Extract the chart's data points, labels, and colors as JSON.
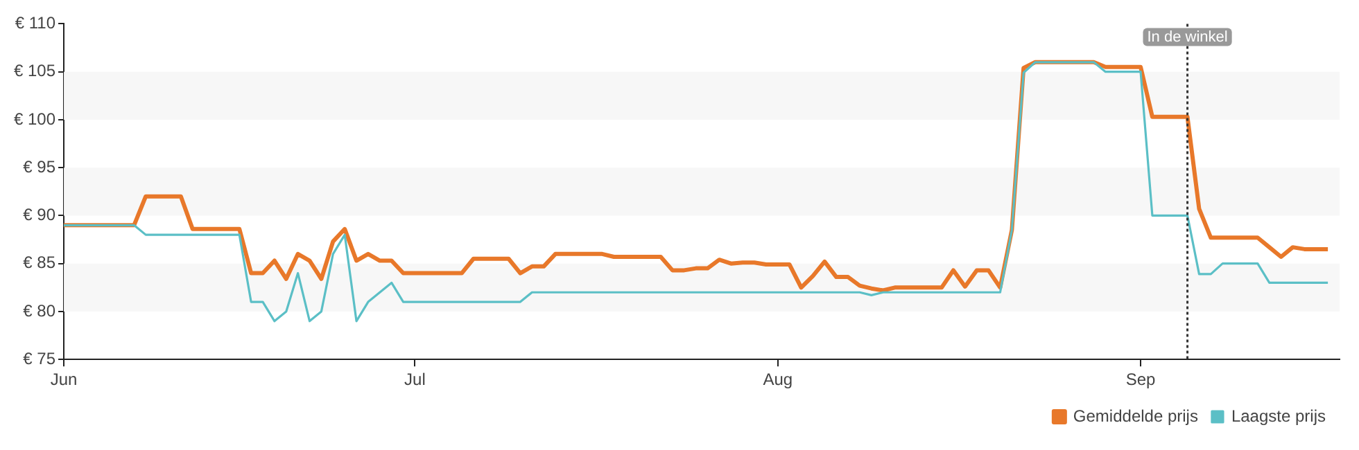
{
  "chart_data": {
    "type": "line",
    "xlim": [
      "--06-01",
      "--09-18"
    ],
    "xticks": [
      {
        "value": "--06-01",
        "label": "Jun"
      },
      {
        "value": "--07-01",
        "label": "Jul"
      },
      {
        "value": "--08-01",
        "label": "Aug"
      },
      {
        "value": "--09-01",
        "label": "Sep"
      }
    ],
    "ylim": [
      75,
      110
    ],
    "yticks": [
      {
        "value": 75,
        "label": "€ 75"
      },
      {
        "value": 80,
        "label": "€ 80"
      },
      {
        "value": 85,
        "label": "€ 85"
      },
      {
        "value": 90,
        "label": "€ 90"
      },
      {
        "value": 95,
        "label": "€ 95"
      },
      {
        "value": 100,
        "label": "€ 100"
      },
      {
        "value": 105,
        "label": "€ 105"
      },
      {
        "value": 110,
        "label": "€ 110"
      }
    ],
    "series": [
      {
        "name": "Gemiddelde prijs",
        "color": "#e8782a",
        "x": [
          "--06-01",
          "--06-07",
          "--06-08",
          "--06-11",
          "--06-12",
          "--06-16",
          "--06-17",
          "--06-18",
          "--06-19",
          "--06-20",
          "--06-21",
          "--06-22",
          "--06-23",
          "--06-24",
          "--06-25",
          "--06-26",
          "--06-27",
          "--06-28",
          "--06-29",
          "--06-30",
          "--07-05",
          "--07-06",
          "--07-09",
          "--07-10",
          "--07-11",
          "--07-12",
          "--07-13",
          "--07-17",
          "--07-18",
          "--07-22",
          "--07-23",
          "--07-24",
          "--07-25",
          "--07-26",
          "--07-27",
          "--07-28",
          "--07-29",
          "--07-30",
          "--07-31",
          "--08-02",
          "--08-03",
          "--08-04",
          "--08-05",
          "--08-06",
          "--08-07",
          "--08-08",
          "--08-09",
          "--08-10",
          "--08-11",
          "--08-15",
          "--08-16",
          "--08-17",
          "--08-18",
          "--08-19",
          "--08-20",
          "--08-21",
          "--08-22",
          "--08-23",
          "--08-28",
          "--08-29",
          "--09-01",
          "--09-02",
          "--09-05",
          "--09-06",
          "--09-07",
          "--09-11",
          "--09-12",
          "--09-13",
          "--09-14",
          "--09-15",
          "--09-17"
        ],
        "values": [
          89,
          89,
          92,
          92,
          88.6,
          88.6,
          84,
          84,
          85.3,
          83.4,
          86,
          85.3,
          83.4,
          87.3,
          88.6,
          85.3,
          86,
          85.3,
          85.3,
          84,
          84,
          85.5,
          85.5,
          84,
          84.7,
          84.7,
          86,
          86,
          85.7,
          85.7,
          84.3,
          84.3,
          84.5,
          84.5,
          85.4,
          85,
          85.1,
          85.1,
          84.9,
          84.9,
          82.5,
          83.7,
          85.2,
          83.6,
          83.6,
          82.7,
          82.4,
          82.2,
          82.5,
          82.5,
          84.3,
          82.6,
          84.3,
          84.3,
          82.5,
          88.5,
          105.4,
          106,
          106,
          105.5,
          105.5,
          100.3,
          100.3,
          90.7,
          87.7,
          87.7,
          86.7,
          85.7,
          86.7,
          86.5,
          86.5
        ]
      },
      {
        "name": "Laagste prijs",
        "color": "#5bbfc6",
        "x": [
          "--06-01",
          "--06-07",
          "--06-08",
          "--06-16",
          "--06-17",
          "--06-18",
          "--06-19",
          "--06-20",
          "--06-21",
          "--06-22",
          "--06-23",
          "--06-24",
          "--06-25",
          "--06-26",
          "--06-27",
          "--06-29",
          "--06-30",
          "--07-10",
          "--07-11",
          "--08-08",
          "--08-09",
          "--08-10",
          "--08-20",
          "--08-21",
          "--08-22",
          "--08-23",
          "--08-28",
          "--08-29",
          "--09-01",
          "--09-02",
          "--09-05",
          "--09-06",
          "--09-07",
          "--09-08",
          "--09-11",
          "--09-12",
          "--09-17"
        ],
        "values": [
          89,
          89,
          88,
          88,
          81,
          81,
          79,
          80,
          84,
          79,
          80,
          86,
          88,
          79,
          81,
          83,
          81,
          81,
          82,
          82,
          81.7,
          82,
          82,
          88.5,
          104.9,
          106,
          106,
          105,
          105,
          90,
          90,
          83.9,
          83.9,
          85,
          85,
          83,
          83
        ]
      }
    ],
    "bands": [
      {
        "axis": "y",
        "from": 80,
        "to": 85,
        "color": "#f7f7f7"
      },
      {
        "axis": "y",
        "from": 90,
        "to": 95,
        "color": "#f7f7f7"
      },
      {
        "axis": "y",
        "from": 100,
        "to": 105,
        "color": "#f7f7f7"
      }
    ],
    "ref_lines": [
      {
        "axis": "x",
        "value": "--09-05",
        "label": "In de winkel",
        "color": "#333333",
        "line_style": "dotted"
      }
    ],
    "grid": false,
    "legend": "bottom right",
    "marker": "none",
    "line_style": "solid"
  }
}
